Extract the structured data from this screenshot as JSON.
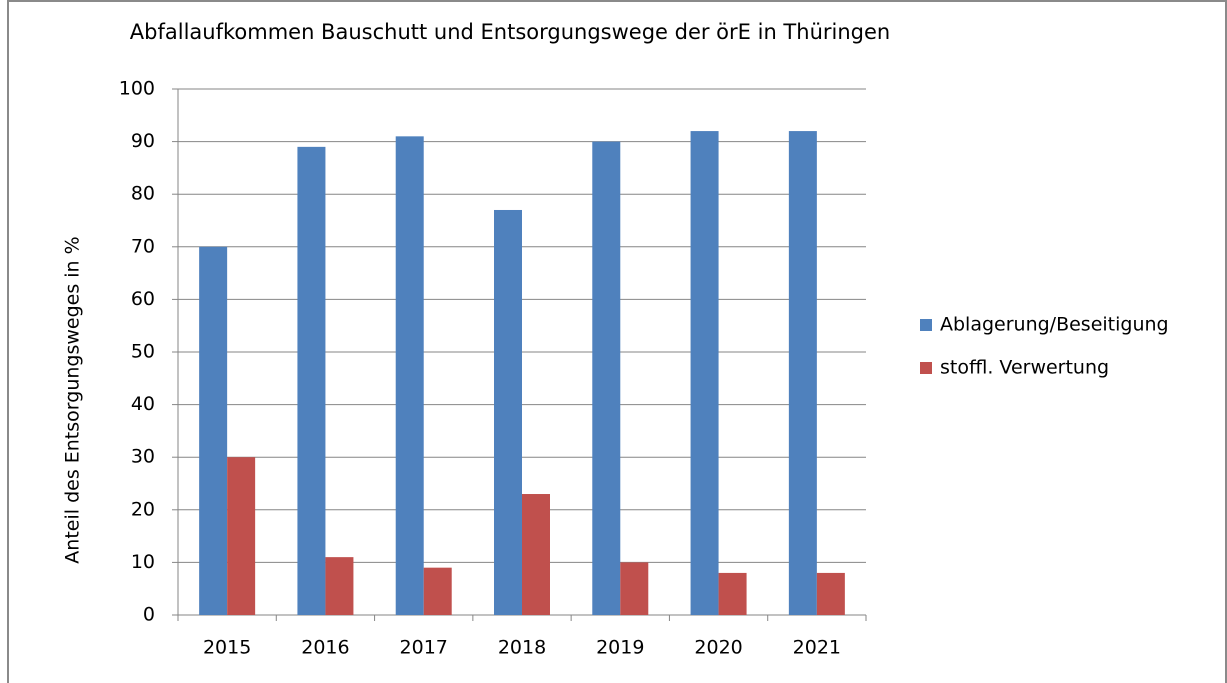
{
  "chart_data": {
    "type": "bar",
    "title": "Abfallaufkommen  Bauschutt und Entsorgungswege der örE in Thüringen",
    "y_label": "Anteil des  Entsorgungsweges  in  %",
    "categories": [
      "2015",
      "2016",
      "2017",
      "2018",
      "2019",
      "2020",
      "2021"
    ],
    "series": [
      {
        "name": "Ablagerung/Beseitigung",
        "color": "#4f81bd",
        "values": [
          70,
          89,
          91,
          77,
          90,
          92,
          92
        ]
      },
      {
        "name": "stoffl. Verwertung",
        "color": "#c0504d",
        "values": [
          30,
          11,
          9,
          23,
          10,
          8,
          8
        ]
      }
    ],
    "ylim": [
      0,
      100
    ],
    "yticks": [
      0,
      10,
      20,
      30,
      40,
      50,
      60,
      70,
      80,
      90,
      100
    ],
    "grid": true,
    "legend": "right"
  }
}
